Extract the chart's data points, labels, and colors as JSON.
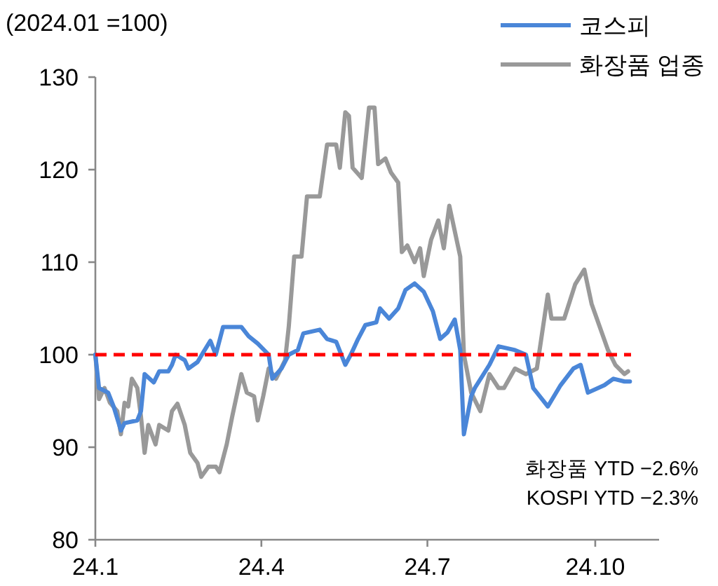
{
  "chart_data": {
    "type": "line",
    "annotations": [
      "(2024.01 =100)",
      "화장품 YTD −2.6%",
      "KOSPI YTD −2.3%"
    ],
    "xlim": [
      "2024-01-01",
      "2024-11-05"
    ],
    "xticks": [
      {
        "value": "2024-01",
        "label": "24.1"
      },
      {
        "value": "2024-04",
        "label": "24.4"
      },
      {
        "value": "2024-07",
        "label": "24.7"
      },
      {
        "value": "2024-10",
        "label": "24.10"
      }
    ],
    "ylim": [
      80,
      130
    ],
    "yticks": [
      80,
      90,
      100,
      110,
      120,
      130
    ],
    "legend": "top right",
    "ref_lines": [
      {
        "axis": "y",
        "value": 100,
        "color": "#ff0000",
        "line_style": "dashed"
      }
    ],
    "series": [
      {
        "name": "코스피",
        "color": "#4a86d8",
        "x": [
          "2024-01-01",
          "2024-01-03",
          "2024-01-08",
          "2024-01-11",
          "2024-01-15",
          "2024-01-17",
          "2024-01-24",
          "2024-01-26",
          "2024-01-28",
          "2024-02-02",
          "2024-02-05",
          "2024-02-10",
          "2024-02-12",
          "2024-02-14",
          "2024-02-19",
          "2024-02-21",
          "2024-02-26",
          "2024-02-29",
          "2024-03-04",
          "2024-03-07",
          "2024-03-11",
          "2024-03-16",
          "2024-03-21",
          "2024-03-25",
          "2024-03-30",
          "2024-04-05",
          "2024-04-07",
          "2024-04-12",
          "2024-04-16",
          "2024-04-21",
          "2024-04-24",
          "2024-05-03",
          "2024-05-07",
          "2024-05-12",
          "2024-05-17",
          "2024-05-20",
          "2024-05-24",
          "2024-05-28",
          "2024-06-03",
          "2024-06-05",
          "2024-06-10",
          "2024-06-15",
          "2024-06-19",
          "2024-06-24",
          "2024-06-29",
          "2024-07-04",
          "2024-07-08",
          "2024-07-12",
          "2024-07-16",
          "2024-07-19",
          "2024-07-21",
          "2024-07-25",
          "2024-07-27",
          "2024-08-04",
          "2024-08-09",
          "2024-08-18",
          "2024-08-24",
          "2024-08-28",
          "2024-09-05",
          "2024-09-12",
          "2024-09-19",
          "2024-09-23",
          "2024-09-27",
          "2024-10-06",
          "2024-10-11",
          "2024-10-17",
          "2024-10-20"
        ],
        "values": [
          100,
          96.4,
          95.9,
          94.4,
          91.8,
          92.6,
          92.9,
          93.9,
          97.9,
          97,
          98.2,
          98.2,
          98.9,
          100,
          99.4,
          98.5,
          99.2,
          100.2,
          101.5,
          100,
          103,
          103,
          103,
          102,
          101.2,
          100,
          97.4,
          98.5,
          100,
          100.5,
          102.3,
          102.7,
          101.7,
          101.4,
          98.9,
          100,
          101.7,
          103.2,
          103.5,
          105,
          103.9,
          105,
          107,
          107.7,
          106.8,
          104.7,
          101.7,
          102.4,
          103.8,
          100.5,
          91.4,
          95.5,
          96.4,
          98.9,
          100.9,
          100.5,
          100,
          96.4,
          94.4,
          96.7,
          98.5,
          98.9,
          95.9,
          96.7,
          97.4,
          97.1,
          97.1
        ]
      },
      {
        "name": "화장품 업종",
        "color": "#999999",
        "x": [
          "2024-01-01",
          "2024-01-03",
          "2024-01-06",
          "2024-01-09",
          "2024-01-13",
          "2024-01-15",
          "2024-01-17",
          "2024-01-19",
          "2024-01-21",
          "2024-01-24",
          "2024-01-26",
          "2024-01-28",
          "2024-01-30",
          "2024-02-03",
          "2024-02-05",
          "2024-02-10",
          "2024-02-12",
          "2024-02-15",
          "2024-02-19",
          "2024-02-22",
          "2024-02-26",
          "2024-02-28",
          "2024-03-03",
          "2024-03-07",
          "2024-03-09",
          "2024-03-13",
          "2024-03-16",
          "2024-03-21",
          "2024-03-24",
          "2024-03-28",
          "2024-03-30",
          "2024-04-02",
          "2024-04-05",
          "2024-04-09",
          "2024-04-14",
          "2024-04-16",
          "2024-04-19",
          "2024-04-23",
          "2024-04-26",
          "2024-05-03",
          "2024-05-07",
          "2024-05-12",
          "2024-05-14",
          "2024-05-17",
          "2024-05-19",
          "2024-05-21",
          "2024-05-26",
          "2024-05-30",
          "2024-06-02",
          "2024-06-04",
          "2024-06-08",
          "2024-06-11",
          "2024-06-15",
          "2024-06-17",
          "2024-06-20",
          "2024-06-24",
          "2024-06-27",
          "2024-06-29",
          "2024-07-03",
          "2024-07-07",
          "2024-07-10",
          "2024-07-13",
          "2024-07-19",
          "2024-07-21",
          "2024-07-25",
          "2024-07-30",
          "2024-08-04",
          "2024-08-09",
          "2024-08-12",
          "2024-08-18",
          "2024-08-24",
          "2024-08-30",
          "2024-09-05",
          "2024-09-07",
          "2024-09-14",
          "2024-09-20",
          "2024-09-25",
          "2024-09-29",
          "2024-10-08",
          "2024-10-12",
          "2024-10-17",
          "2024-10-19"
        ],
        "values": [
          100,
          95.2,
          96.4,
          94.8,
          93.9,
          91.4,
          94.8,
          94.4,
          97.4,
          96.4,
          93.3,
          89.4,
          92.4,
          90.3,
          92.4,
          91.8,
          93.9,
          94.7,
          92.4,
          89.4,
          88.3,
          86.8,
          87.9,
          87.9,
          87.3,
          90.3,
          93.3,
          97.9,
          95.9,
          95.5,
          92.9,
          95.5,
          98.5,
          97.4,
          99.4,
          103,
          110.6,
          110.6,
          117.1,
          117.1,
          122.7,
          122.7,
          120.2,
          126.2,
          125.8,
          120.2,
          119.1,
          126.7,
          126.7,
          120.6,
          121.2,
          119.7,
          118.6,
          111.1,
          111.8,
          110,
          111.5,
          108.5,
          112.4,
          114.5,
          111.5,
          116.1,
          110.6,
          100,
          95.9,
          93.9,
          97.9,
          96.4,
          96.4,
          98.5,
          97.9,
          98.5,
          106.5,
          103.9,
          103.9,
          107.6,
          109.2,
          105.5,
          100.5,
          98.9,
          97.9,
          98.2
        ]
      }
    ]
  }
}
